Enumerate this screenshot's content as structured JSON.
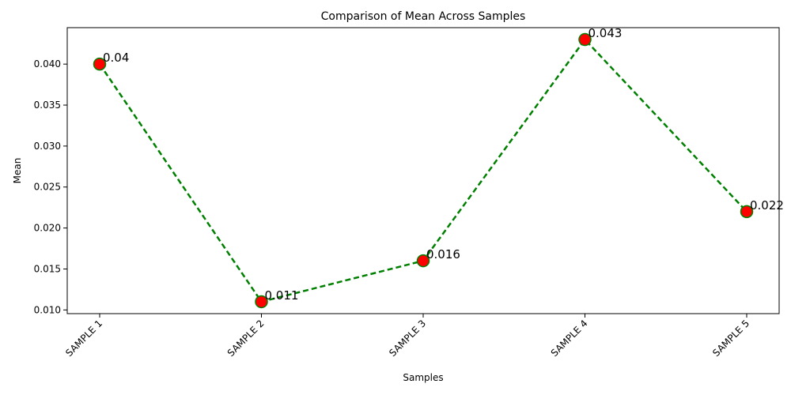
{
  "chart_data": {
    "type": "line",
    "title": "Comparison of Mean Across Samples",
    "xlabel": "Samples",
    "ylabel": "Mean",
    "categories": [
      "SAMPLE 1",
      "SAMPLE 2",
      "SAMPLE 3",
      "SAMPLE 4",
      "SAMPLE 5"
    ],
    "series": [
      {
        "values": [
          0.04,
          0.011,
          0.016,
          0.043,
          0.022
        ],
        "data_labels": [
          "0.04",
          "0.011",
          "0.016",
          "0.043",
          "0.022"
        ],
        "line_color": "#008000",
        "line_style": "dashed",
        "marker_color": "#ff0000",
        "marker_edge_color": "#008000"
      }
    ],
    "yticks": [
      0.01,
      0.015,
      0.02,
      0.025,
      0.03,
      0.035,
      0.04
    ],
    "ytick_labels": [
      "0.010",
      "0.015",
      "0.020",
      "0.025",
      "0.030",
      "0.035",
      "0.040"
    ],
    "ylim": [
      0.00955,
      0.04445
    ],
    "grid": false,
    "legend": false
  }
}
